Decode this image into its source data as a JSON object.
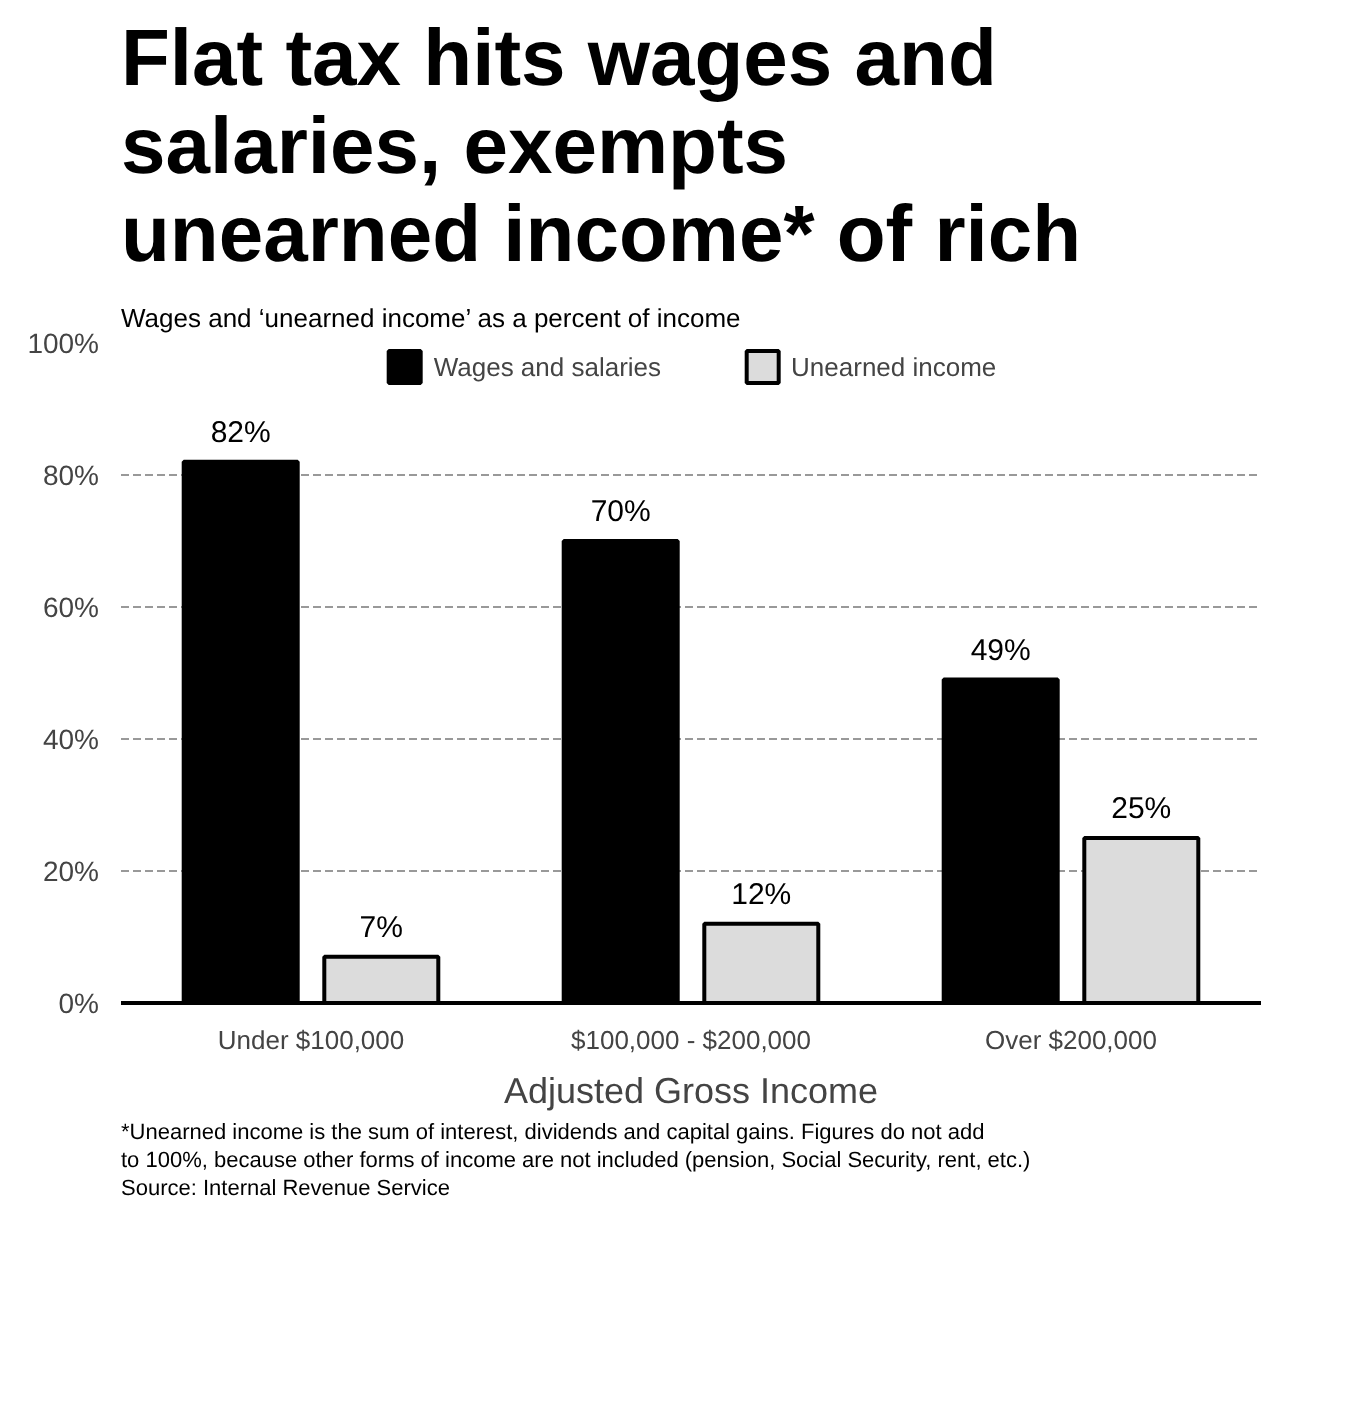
{
  "chart_data": {
    "type": "bar",
    "title": "Flat tax hits wages and\nsalaries, exempts\nunearned income* of rich",
    "subtitle": "Wages and ‘unearned income’ as a percent of income",
    "xlabel": "Adjusted Gross Income",
    "categories": [
      "Under $100,000",
      "$100,000 - $200,000",
      "Over $200,000"
    ],
    "series": [
      {
        "name": "Wages and salaries",
        "color": "#000000",
        "values": [
          82,
          70,
          49
        ],
        "value_labels": [
          "82%",
          "70%",
          "49%"
        ]
      },
      {
        "name": "Unearned income",
        "color": "#dcdcdc",
        "values": [
          7,
          12,
          25
        ],
        "value_labels": [
          "7%",
          "12%",
          "25%"
        ]
      }
    ],
    "ylim": [
      0,
      100
    ],
    "yticks": [
      {
        "value": 0,
        "label": "0%"
      },
      {
        "value": 20,
        "label": "20%"
      },
      {
        "value": 40,
        "label": "40%"
      },
      {
        "value": 60,
        "label": "60%"
      },
      {
        "value": 80,
        "label": "80%"
      },
      {
        "value": 100,
        "label": "100%"
      }
    ],
    "grid": "y",
    "legend": "top",
    "annotations": [
      "*Unearned income is the sum of interest, dividends and capital gains. Figures do not add",
      "to 100%, because other forms of income are not included (pension, Social Security, rent, etc.)",
      "Source: Internal Revenue Service"
    ]
  }
}
